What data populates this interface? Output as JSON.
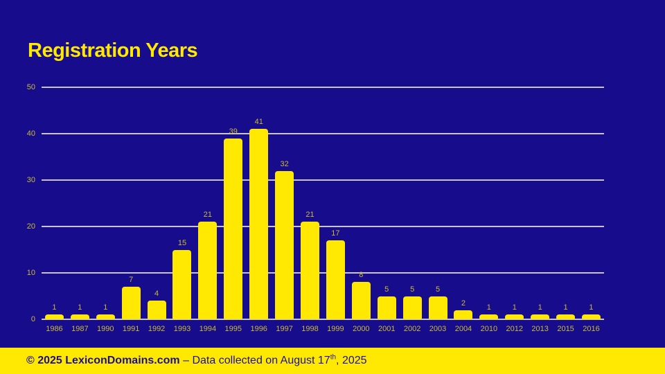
{
  "title": "Registration Years",
  "footer": {
    "copyright_bold": "© 2025 LexiconDomains.com",
    "separator": " – ",
    "collected_text": "Data collected on August 17",
    "ordinal_suffix": "th",
    "collected_tail": ", 2025"
  },
  "colors": {
    "background": "#170d8c",
    "bar": "#ffe903",
    "title_text": "#ffe903",
    "small_label_text": "#c9bb33",
    "gridline": "#c9c4c6",
    "footer_background": "#ffe903",
    "footer_text": "#1b1092"
  },
  "chart_data": {
    "type": "bar",
    "title": "Registration Years",
    "categories": [
      "1986",
      "1987",
      "1990",
      "1991",
      "1992",
      "1993",
      "1994",
      "1995",
      "1996",
      "1997",
      "1998",
      "1999",
      "2000",
      "2001",
      "2002",
      "2003",
      "2004",
      "2010",
      "2012",
      "2013",
      "2015",
      "2016"
    ],
    "values": [
      1,
      1,
      1,
      7,
      4,
      15,
      21,
      39,
      41,
      32,
      21,
      17,
      8,
      5,
      5,
      5,
      2,
      1,
      1,
      1,
      1,
      1
    ],
    "xlabel": "",
    "ylabel": "",
    "ylim": [
      0,
      50
    ],
    "yticks": [
      0,
      10,
      20,
      30,
      40,
      50
    ],
    "grid": true,
    "legend": false,
    "data_labels": true
  }
}
